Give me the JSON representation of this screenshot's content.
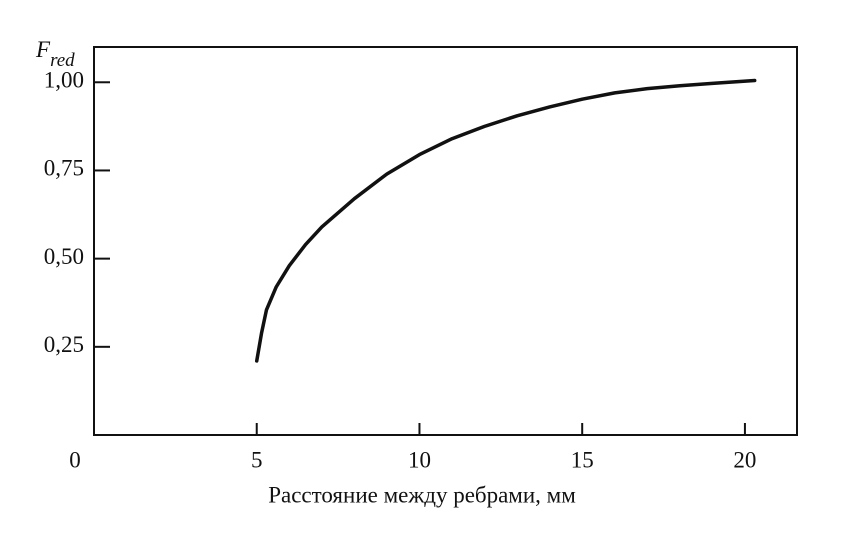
{
  "chart_data": {
    "type": "line",
    "y_label": "F",
    "y_label_subscript": "red",
    "x_label": "Расстояние между ребрами, мм",
    "xlim": [
      0,
      21.6
    ],
    "xticks": [
      0,
      5,
      10,
      15,
      20
    ],
    "ylim": [
      0,
      1.1
    ],
    "yticks": [
      {
        "value": 0.25,
        "label": "0,25"
      },
      {
        "value": 0.5,
        "label": "0,50"
      },
      {
        "value": 0.75,
        "label": "0,75"
      },
      {
        "value": 1.0,
        "label": "1,00"
      }
    ],
    "series": [
      {
        "color": "#111111",
        "x": [
          5.0,
          5.15,
          5.3,
          5.6,
          6,
          6.5,
          7,
          8,
          9,
          10,
          11,
          12,
          13,
          14,
          15,
          16,
          17,
          18,
          19,
          20.3
        ],
        "values": [
          0.21,
          0.29,
          0.355,
          0.42,
          0.48,
          0.54,
          0.59,
          0.67,
          0.74,
          0.795,
          0.84,
          0.875,
          0.905,
          0.93,
          0.952,
          0.97,
          0.982,
          0.99,
          0.997,
          1.005
        ]
      }
    ]
  }
}
